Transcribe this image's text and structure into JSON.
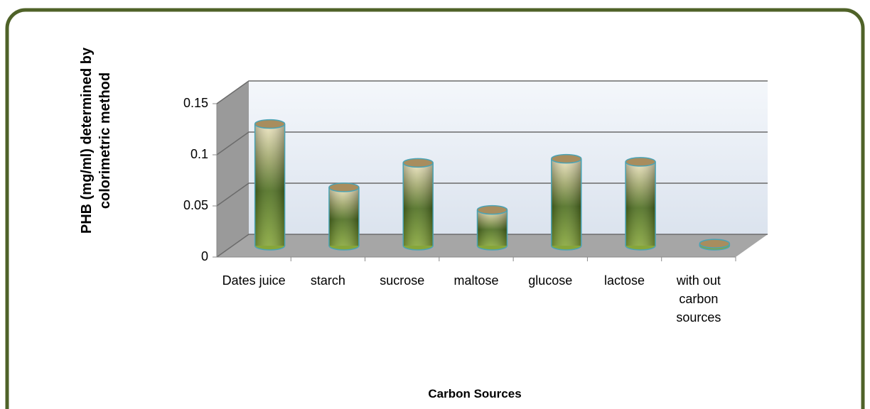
{
  "chart_data": {
    "type": "bar",
    "x_axis_label": "Carbon Sources",
    "y_axis_label": "PHB (mg/ml) determined by colorimetric method",
    "categories": [
      "Dates juice",
      "starch",
      "sucrose",
      "maltose",
      "glucose",
      "lactose",
      "with out carbon sources"
    ],
    "values": [
      0.119,
      0.057,
      0.081,
      0.035,
      0.085,
      0.082,
      0.002
    ],
    "color": "#5a7a25",
    "ylim": [
      0,
      0.15
    ],
    "yticks": [
      0,
      0.05,
      0.1,
      0.15
    ],
    "grid": true
  }
}
